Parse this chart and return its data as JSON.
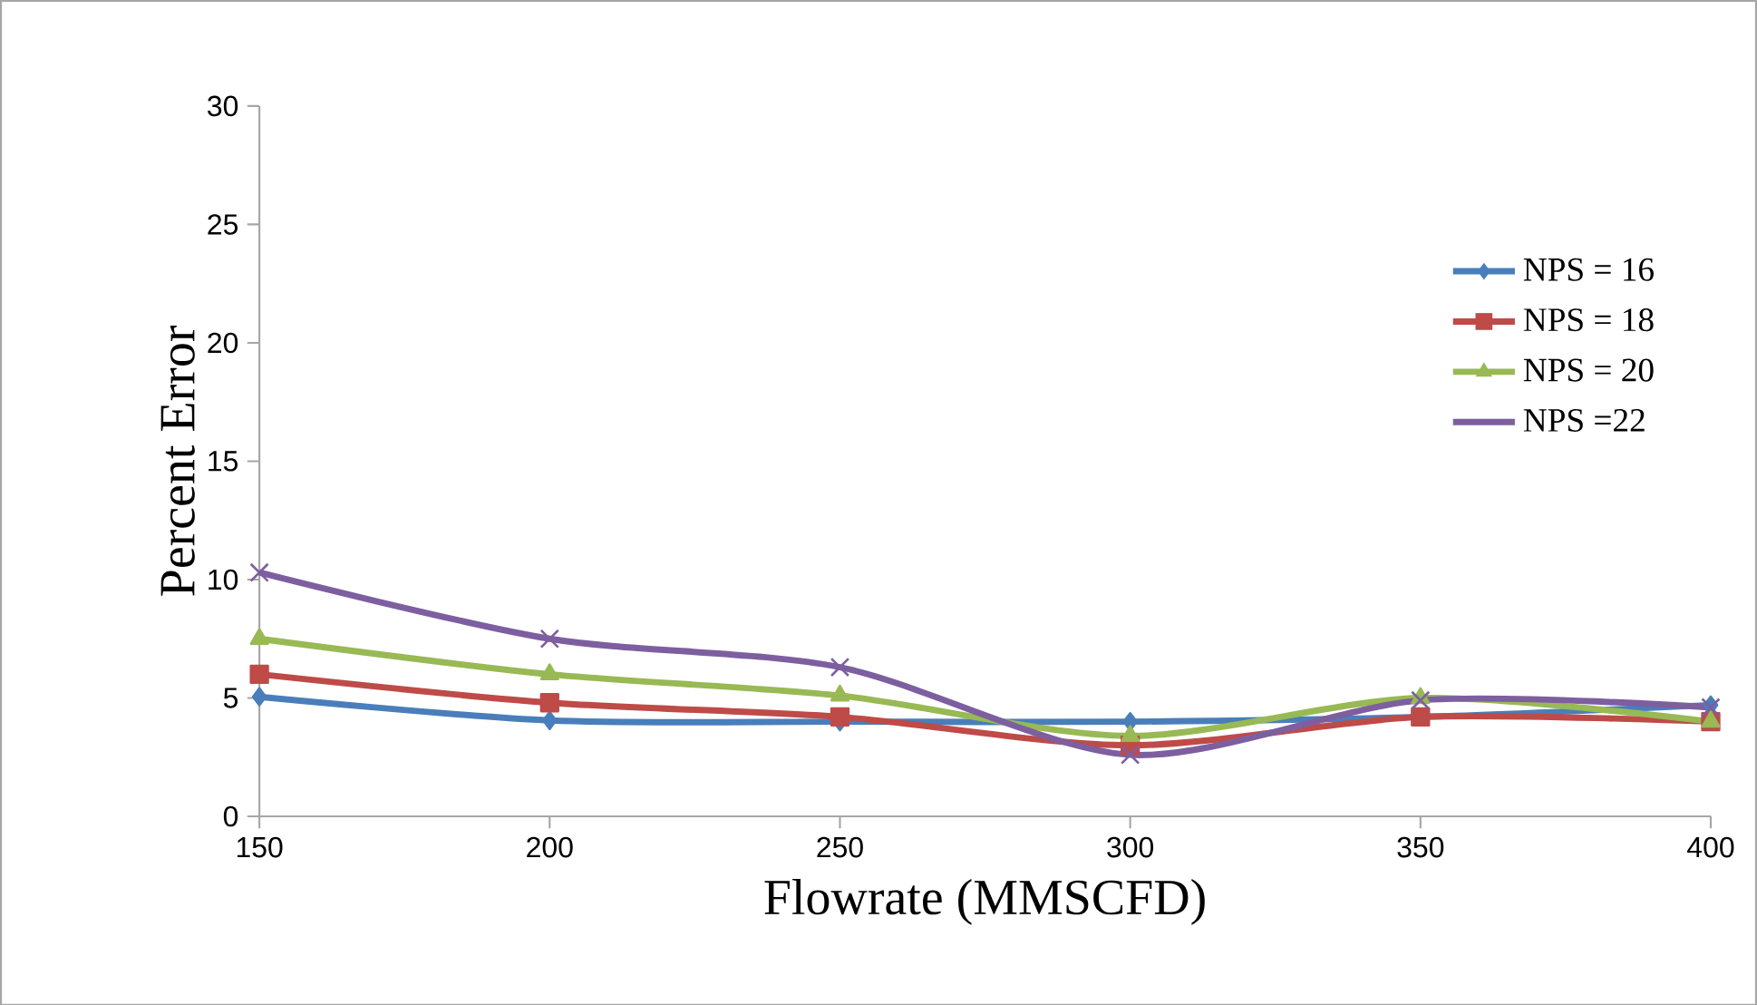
{
  "chart_data": {
    "type": "line",
    "xlabel": "Flowrate (MMSCFD)",
    "ylabel": "Percent Error",
    "x": [
      150,
      200,
      250,
      300,
      350,
      400
    ],
    "xlim": [
      150,
      400
    ],
    "xticks": [
      150,
      200,
      250,
      300,
      350,
      400
    ],
    "ylim": [
      0,
      30
    ],
    "yticks": [
      0,
      5,
      10,
      15,
      20,
      25,
      30
    ],
    "grid": false,
    "legend": "right",
    "series": [
      {
        "name": "NPS = 16",
        "color": "#4a7ebb",
        "marker": "diamond",
        "values": [
          5.05,
          4.05,
          4.0,
          4.0,
          4.2,
          4.7
        ]
      },
      {
        "name": "NPS = 18",
        "color": "#be4b48",
        "marker": "square",
        "values": [
          6.0,
          4.8,
          4.2,
          3.0,
          4.2,
          4.0
        ]
      },
      {
        "name": "NPS = 20",
        "color": "#98b954",
        "marker": "triangle",
        "values": [
          7.5,
          6.0,
          5.1,
          3.4,
          5.0,
          4.0
        ]
      },
      {
        "name": "NPS =22",
        "color": "#7d5fa0",
        "marker": "cross",
        "values": [
          10.3,
          7.5,
          6.3,
          2.6,
          4.9,
          4.6
        ]
      }
    ]
  }
}
